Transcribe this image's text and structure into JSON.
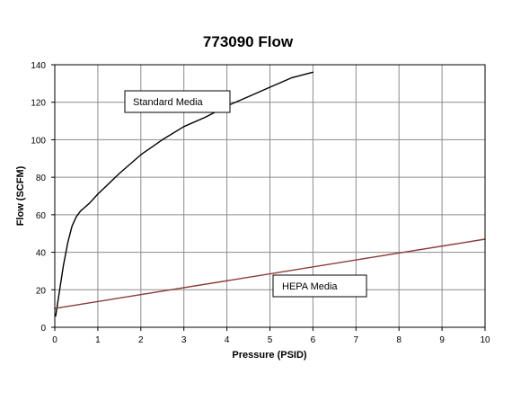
{
  "chart_data": {
    "type": "line",
    "title": "773090 Flow",
    "xlabel": "Pressure (PSID)",
    "ylabel": "Flow (SCFM)",
    "xlim": [
      0,
      10
    ],
    "ylim": [
      0,
      140
    ],
    "xticks": [
      0,
      1,
      2,
      3,
      4,
      5,
      6,
      7,
      8,
      9,
      10
    ],
    "yticks": [
      0,
      20,
      40,
      60,
      80,
      100,
      120,
      140
    ],
    "grid": true,
    "legend": "none",
    "series": [
      {
        "name": "Standard Media",
        "color": "#000000",
        "x": [
          0.02,
          0.1,
          0.2,
          0.3,
          0.4,
          0.5,
          0.6,
          0.7,
          0.8,
          1.0,
          1.5,
          2.0,
          2.5,
          3.0,
          3.5,
          4.0,
          4.5,
          5.0,
          5.5,
          6.0
        ],
        "y": [
          6,
          18,
          33,
          45,
          54,
          59,
          62,
          64,
          66,
          71,
          82,
          92,
          100,
          107,
          112,
          118,
          123,
          128,
          133,
          136
        ]
      },
      {
        "name": "HEPA Media",
        "color": "#8B3A3A",
        "x": [
          0,
          10
        ],
        "y": [
          10,
          47
        ]
      }
    ],
    "annotations": [
      {
        "text": "Standard Media",
        "series": 0
      },
      {
        "text": "HEPA Media",
        "series": 1
      }
    ]
  }
}
